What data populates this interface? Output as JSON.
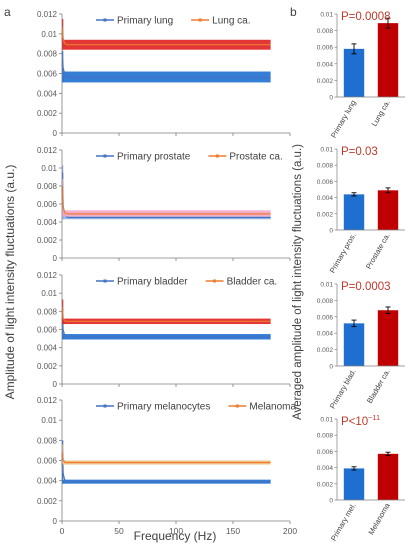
{
  "panel_labels": {
    "a": "a",
    "b": "b"
  },
  "left_ylabel": "Amplitude of light intensity fluctuations (a.u.)",
  "left_xlabel": "Frequency (Hz)",
  "right_ylabel": "Averaged amplitude of light intensity fluctuations (a.u.)",
  "chart_data": [
    {
      "type": "line",
      "panel": "a",
      "xlim": [
        0,
        200
      ],
      "ylim": [
        0,
        0.012
      ],
      "xticks": [
        "0",
        "50",
        "100",
        "150",
        "200"
      ],
      "yticks": [
        "0",
        "0.002",
        "0.004",
        "0.006",
        "0.008",
        "0.01",
        "0.012"
      ],
      "show_xticklabels": false,
      "series": [
        {
          "name": "Primary lung",
          "color": "#4472c4",
          "band": "#1f6fd0",
          "x": [
            0,
            0.5,
            1,
            2,
            3,
            5,
            183
          ],
          "y": [
            0.0068,
            0.0075,
            0.0066,
            0.0061,
            0.0058,
            0.0056,
            0.0056
          ],
          "band_lo": 0.0051,
          "band_hi": 0.0062
        },
        {
          "name": "Lung ca.",
          "color": "#ed7d31",
          "band": "#e02020",
          "x": [
            0,
            0.5,
            1,
            2,
            3,
            5,
            183
          ],
          "y": [
            0.0095,
            0.0107,
            0.0096,
            0.0091,
            0.009,
            0.0089,
            0.0089
          ],
          "band_lo": 0.0084,
          "band_hi": 0.0094
        }
      ]
    },
    {
      "type": "line",
      "panel": "a",
      "xlim": [
        0,
        200
      ],
      "ylim": [
        0,
        0.012
      ],
      "xticks": [
        "0",
        "50",
        "100",
        "150",
        "200"
      ],
      "yticks": [
        "0",
        "0.002",
        "0.004",
        "0.006",
        "0.008",
        "0.01",
        "0.012"
      ],
      "show_xticklabels": false,
      "series": [
        {
          "name": "Primary prostate",
          "color": "#4472c4",
          "band": "#8fb4e3",
          "x": [
            0,
            0.5,
            1,
            2,
            3,
            5,
            183
          ],
          "y": [
            0.0072,
            0.0095,
            0.0058,
            0.005,
            0.0047,
            0.0045,
            0.0045
          ],
          "band_lo": 0.0043,
          "band_hi": 0.0047
        },
        {
          "name": "Prostate ca.",
          "color": "#ed7d31",
          "band": "#f4a6c8",
          "x": [
            0,
            0.5,
            1,
            2,
            3,
            5,
            183
          ],
          "y": [
            0.0065,
            0.008,
            0.0057,
            0.0052,
            0.005,
            0.0049,
            0.0049
          ],
          "band_lo": 0.0046,
          "band_hi": 0.0053
        }
      ]
    },
    {
      "type": "line",
      "panel": "a",
      "xlim": [
        0,
        200
      ],
      "ylim": [
        0,
        0.012
      ],
      "xticks": [
        "0",
        "50",
        "100",
        "150",
        "200"
      ],
      "yticks": [
        "0",
        "0.002",
        "0.004",
        "0.006",
        "0.008",
        "0.01",
        "0.012"
      ],
      "show_xticklabels": false,
      "series": [
        {
          "name": "Primary bladder",
          "color": "#4472c4",
          "band": "#1f6fd0",
          "x": [
            0,
            0.5,
            1,
            2,
            3,
            5,
            183
          ],
          "y": [
            0.0066,
            0.0075,
            0.006,
            0.0055,
            0.0053,
            0.0052,
            0.0052
          ],
          "band_lo": 0.0049,
          "band_hi": 0.0055
        },
        {
          "name": "Bladder ca.",
          "color": "#ed7d31",
          "band": "#e02020",
          "x": [
            0,
            0.5,
            1,
            2,
            3,
            5,
            183
          ],
          "y": [
            0.0078,
            0.0085,
            0.0073,
            0.007,
            0.0069,
            0.0069,
            0.0069
          ],
          "band_lo": 0.0066,
          "band_hi": 0.0072
        }
      ]
    },
    {
      "type": "line",
      "panel": "a",
      "xlim": [
        0,
        200
      ],
      "ylim": [
        0,
        0.012
      ],
      "xticks": [
        "0",
        "50",
        "100",
        "150",
        "200"
      ],
      "yticks": [
        "0",
        "0.002",
        "0.004",
        "0.006",
        "0.008",
        "0.01",
        "0.012"
      ],
      "show_xticklabels": true,
      "series": [
        {
          "name": "Primary melanocytes",
          "color": "#4472c4",
          "band": "#1f6fd0",
          "x": [
            0,
            0.5,
            1,
            2,
            3,
            5,
            183
          ],
          "y": [
            0.0055,
            0.0072,
            0.0048,
            0.0042,
            0.004,
            0.0039,
            0.0039
          ],
          "band_lo": 0.0037,
          "band_hi": 0.0041
        },
        {
          "name": "Melanoma",
          "color": "#ed7d31",
          "band": "#f0c080",
          "x": [
            0,
            0.5,
            1,
            2,
            3,
            5,
            183
          ],
          "y": [
            0.0063,
            0.0068,
            0.0061,
            0.0059,
            0.0058,
            0.0058,
            0.0058
          ],
          "band_lo": 0.0056,
          "band_hi": 0.006
        }
      ]
    },
    {
      "type": "bar",
      "panel": "b",
      "ylim": [
        0,
        0.01
      ],
      "yticks": [
        "0",
        "0.002",
        "0.004",
        "0.006",
        "0.008",
        "0.01"
      ],
      "categories": [
        "Primary lung",
        "Lung ca."
      ],
      "values": [
        0.0058,
        0.0089
      ],
      "errors": [
        0.0006,
        0.0006
      ],
      "colors": [
        "#1f6fd0",
        "#c00000"
      ],
      "annotation": "P=0.0008"
    },
    {
      "type": "bar",
      "panel": "b",
      "ylim": [
        0,
        0.01
      ],
      "yticks": [
        "0",
        "0.002",
        "0.004",
        "0.006",
        "0.008",
        "0.01"
      ],
      "categories": [
        "Primary pros.",
        "Prostate ca."
      ],
      "values": [
        0.0044,
        0.0049
      ],
      "errors": [
        0.0002,
        0.0003
      ],
      "colors": [
        "#1f6fd0",
        "#c00000"
      ],
      "annotation": "P=0.03"
    },
    {
      "type": "bar",
      "panel": "b",
      "ylim": [
        0,
        0.01
      ],
      "yticks": [
        "0",
        "0.002",
        "0.004",
        "0.006",
        "0.008",
        "0.01"
      ],
      "categories": [
        "Primary blad.",
        "Bladder ca."
      ],
      "values": [
        0.0052,
        0.0068
      ],
      "errors": [
        0.0004,
        0.0004
      ],
      "colors": [
        "#1f6fd0",
        "#c00000"
      ],
      "annotation": "P=0.0003"
    },
    {
      "type": "bar",
      "panel": "b",
      "ylim": [
        0,
        0.01
      ],
      "yticks": [
        "0",
        "0.002",
        "0.004",
        "0.006",
        "0.008",
        "0.01"
      ],
      "categories": [
        "Primary mel.",
        "Melanoma"
      ],
      "values": [
        0.0039,
        0.0057
      ],
      "errors": [
        0.0002,
        0.0002
      ],
      "colors": [
        "#1f6fd0",
        "#c00000"
      ],
      "annotation": "P<10",
      "annotation_sup": "−11"
    }
  ]
}
